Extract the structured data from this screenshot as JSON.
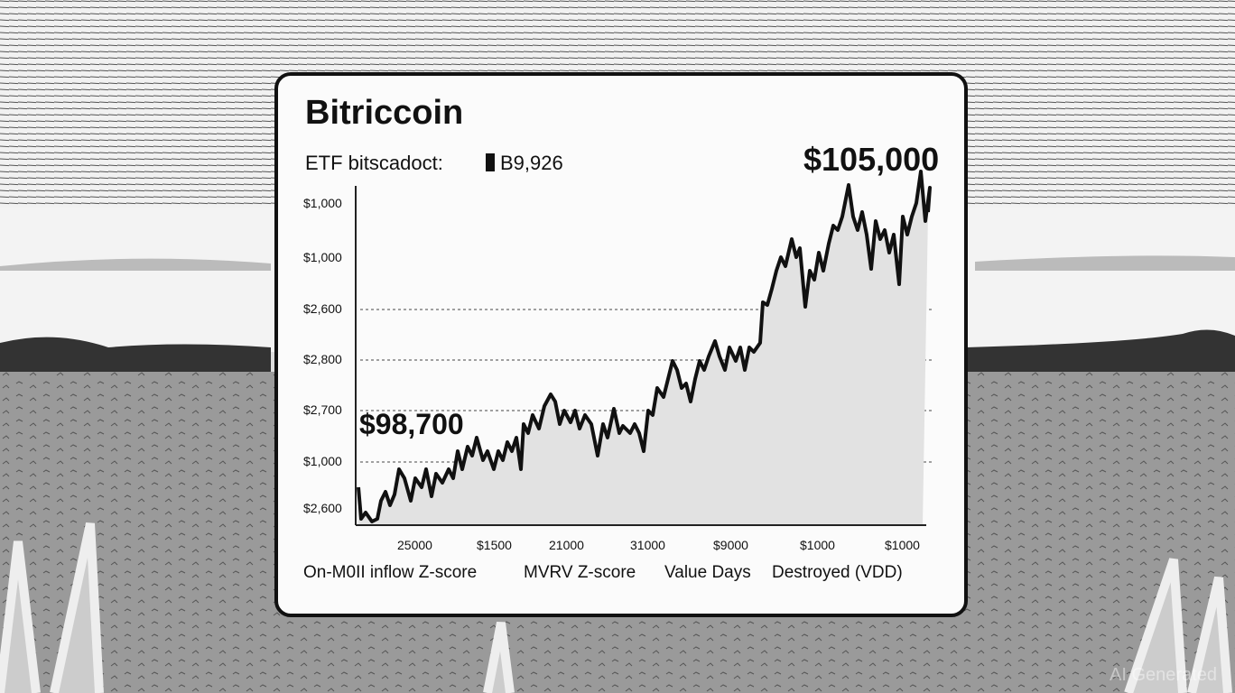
{
  "card": {
    "title": "Bitriccoin",
    "subtitle": "ETF bitscadoct:",
    "badge": "B9,926",
    "high_label": "$105,000",
    "low_label": "$98,700",
    "y_labels": [
      "$1,000",
      "$1,000",
      "$2,600",
      "$2,800",
      "$2,700",
      "$1,000",
      "$2,600"
    ],
    "x_labels": [
      "25000",
      "$1500",
      "21000",
      "31000",
      "$9000",
      "$1000",
      "$1000"
    ],
    "legend": [
      "On-M0II inflow Z-score",
      "MVRV Z-score",
      "Value Days",
      "Destroyed (VDD)"
    ]
  },
  "watermark": "AI Generated"
}
